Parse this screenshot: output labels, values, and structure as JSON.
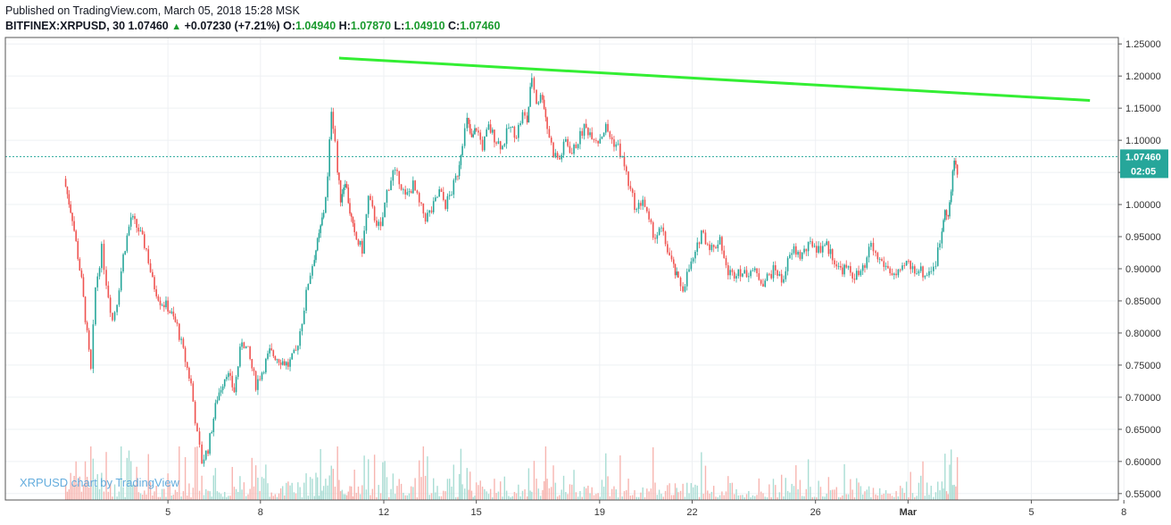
{
  "header": {
    "published": "Published on TradingView.com, March 05, 2018 15:28 MSK",
    "symbol": "BITFINEX:XRPUSD, 30",
    "last": "1.07460",
    "change": "+0.07230 (+7.21%)",
    "o_label": "O:",
    "o_value": "1.04940",
    "h_label": "H:",
    "h_value": "1.07870",
    "l_label": "L:",
    "l_value": "1.04910",
    "c_label": "C:",
    "c_value": "1.07460"
  },
  "watermark": "XRPUSD chart by TradingView",
  "colors": {
    "up": "#26a69a",
    "down": "#ef5350",
    "trendline": "#33ee33",
    "last_price_bg": "#26a69a",
    "grid": "#eef0f3"
  },
  "chart_data": {
    "type": "candlestick",
    "ylim": [
      0.54,
      1.26
    ],
    "y_ticks": [
      "1.25000",
      "1.20000",
      "1.15000",
      "1.10000",
      "1.05000",
      "1.00000",
      "0.95000",
      "0.90000",
      "0.85000",
      "0.80000",
      "0.75000",
      "0.70000",
      "0.65000",
      "0.60000",
      "0.55000"
    ],
    "x_ticks": [
      {
        "label": "5",
        "day": 5
      },
      {
        "label": "8",
        "day": 8
      },
      {
        "label": "12",
        "day": 12
      },
      {
        "label": "15",
        "day": 15
      },
      {
        "label": "19",
        "day": 19
      },
      {
        "label": "22",
        "day": 22
      },
      {
        "label": "26",
        "day": 26
      },
      {
        "label": "Mar",
        "day": 29
      },
      {
        "label": "5",
        "day": 33
      },
      {
        "label": "8",
        "day": 36
      }
    ],
    "last_price": "1.07460",
    "countdown": "02:05",
    "trendline": {
      "start": {
        "day": 10.55,
        "price": 1.228
      },
      "end": {
        "day": 34.9,
        "price": 1.162
      }
    },
    "path": [
      [
        1.63,
        1.04
      ],
      [
        1.9,
        0.98
      ],
      [
        2.2,
        0.88
      ],
      [
        2.5,
        0.74
      ],
      [
        2.65,
        0.87
      ],
      [
        2.85,
        0.93
      ],
      [
        3.0,
        0.88
      ],
      [
        3.2,
        0.82
      ],
      [
        3.35,
        0.85
      ],
      [
        3.55,
        0.92
      ],
      [
        3.8,
        0.98
      ],
      [
        4.05,
        0.96
      ],
      [
        4.3,
        0.93
      ],
      [
        4.5,
        0.88
      ],
      [
        4.75,
        0.85
      ],
      [
        5.0,
        0.84
      ],
      [
        5.3,
        0.81
      ],
      [
        5.5,
        0.77
      ],
      [
        5.75,
        0.72
      ],
      [
        5.95,
        0.64
      ],
      [
        6.1,
        0.6
      ],
      [
        6.3,
        0.62
      ],
      [
        6.6,
        0.7
      ],
      [
        6.9,
        0.74
      ],
      [
        7.15,
        0.71
      ],
      [
        7.4,
        0.79
      ],
      [
        7.6,
        0.77
      ],
      [
        7.85,
        0.72
      ],
      [
        8.05,
        0.74
      ],
      [
        8.3,
        0.77
      ],
      [
        8.6,
        0.76
      ],
      [
        8.9,
        0.75
      ],
      [
        9.15,
        0.77
      ],
      [
        9.35,
        0.82
      ],
      [
        9.55,
        0.88
      ],
      [
        9.75,
        0.92
      ],
      [
        9.9,
        0.95
      ],
      [
        10.05,
        0.99
      ],
      [
        10.18,
        1.04
      ],
      [
        10.3,
        1.15
      ],
      [
        10.42,
        1.1
      ],
      [
        10.5,
        1.05
      ],
      [
        10.6,
        1.01
      ],
      [
        10.75,
        1.04
      ],
      [
        10.9,
        0.99
      ],
      [
        11.05,
        0.95
      ],
      [
        11.3,
        0.93
      ],
      [
        11.5,
        1.01
      ],
      [
        11.7,
        0.98
      ],
      [
        11.9,
        0.96
      ],
      [
        12.1,
        1.02
      ],
      [
        12.3,
        1.05
      ],
      [
        12.5,
        1.04
      ],
      [
        12.7,
        1.01
      ],
      [
        12.95,
        1.03
      ],
      [
        13.15,
        1.0
      ],
      [
        13.35,
        0.98
      ],
      [
        13.55,
        0.99
      ],
      [
        13.8,
        1.02
      ],
      [
        14.0,
        1.0
      ],
      [
        14.2,
        1.02
      ],
      [
        14.4,
        1.05
      ],
      [
        14.55,
        1.1
      ],
      [
        14.7,
        1.13
      ],
      [
        14.85,
        1.1
      ],
      [
        15.0,
        1.12
      ],
      [
        15.2,
        1.09
      ],
      [
        15.4,
        1.12
      ],
      [
        15.65,
        1.1
      ],
      [
        15.85,
        1.09
      ],
      [
        16.05,
        1.12
      ],
      [
        16.3,
        1.11
      ],
      [
        16.5,
        1.14
      ],
      [
        16.65,
        1.13
      ],
      [
        16.8,
        1.2
      ],
      [
        16.95,
        1.16
      ],
      [
        17.15,
        1.17
      ],
      [
        17.3,
        1.12
      ],
      [
        17.5,
        1.08
      ],
      [
        17.7,
        1.07
      ],
      [
        17.9,
        1.1
      ],
      [
        18.1,
        1.08
      ],
      [
        18.3,
        1.1
      ],
      [
        18.5,
        1.12
      ],
      [
        18.75,
        1.11
      ],
      [
        18.95,
        1.1
      ],
      [
        19.2,
        1.12
      ],
      [
        19.4,
        1.1
      ],
      [
        19.6,
        1.09
      ],
      [
        19.8,
        1.06
      ],
      [
        20.0,
        1.02
      ],
      [
        20.2,
        0.99
      ],
      [
        20.4,
        1.01
      ],
      [
        20.6,
        0.97
      ],
      [
        20.8,
        0.95
      ],
      [
        21.0,
        0.96
      ],
      [
        21.2,
        0.93
      ],
      [
        21.4,
        0.9
      ],
      [
        21.55,
        0.88
      ],
      [
        21.7,
        0.87
      ],
      [
        21.9,
        0.9
      ],
      [
        22.1,
        0.92
      ],
      [
        22.3,
        0.96
      ],
      [
        22.5,
        0.94
      ],
      [
        22.7,
        0.93
      ],
      [
        22.9,
        0.95
      ],
      [
        23.1,
        0.9
      ],
      [
        23.3,
        0.89
      ],
      [
        23.5,
        0.9
      ],
      [
        23.7,
        0.89
      ],
      [
        23.9,
        0.9
      ],
      [
        24.1,
        0.89
      ],
      [
        24.3,
        0.88
      ],
      [
        24.5,
        0.89
      ],
      [
        24.7,
        0.9
      ],
      [
        24.9,
        0.88
      ],
      [
        25.1,
        0.91
      ],
      [
        25.3,
        0.93
      ],
      [
        25.5,
        0.92
      ],
      [
        25.7,
        0.93
      ],
      [
        25.9,
        0.94
      ],
      [
        26.1,
        0.93
      ],
      [
        26.3,
        0.94
      ],
      [
        26.55,
        0.92
      ],
      [
        26.75,
        0.9
      ],
      [
        27.0,
        0.9
      ],
      [
        27.2,
        0.89
      ],
      [
        27.4,
        0.89
      ],
      [
        27.6,
        0.9
      ],
      [
        27.8,
        0.94
      ],
      [
        27.95,
        0.92
      ],
      [
        28.15,
        0.91
      ],
      [
        28.35,
        0.9
      ],
      [
        28.55,
        0.89
      ],
      [
        28.75,
        0.89
      ],
      [
        28.95,
        0.91
      ],
      [
        29.15,
        0.9
      ],
      [
        29.35,
        0.9
      ],
      [
        29.55,
        0.89
      ],
      [
        29.75,
        0.9
      ],
      [
        29.9,
        0.91
      ],
      [
        30.1,
        0.96
      ],
      [
        30.2,
        1.0
      ],
      [
        30.3,
        0.98
      ],
      [
        30.4,
        1.02
      ],
      [
        30.5,
        1.07
      ],
      [
        30.6,
        1.05
      ]
    ]
  }
}
